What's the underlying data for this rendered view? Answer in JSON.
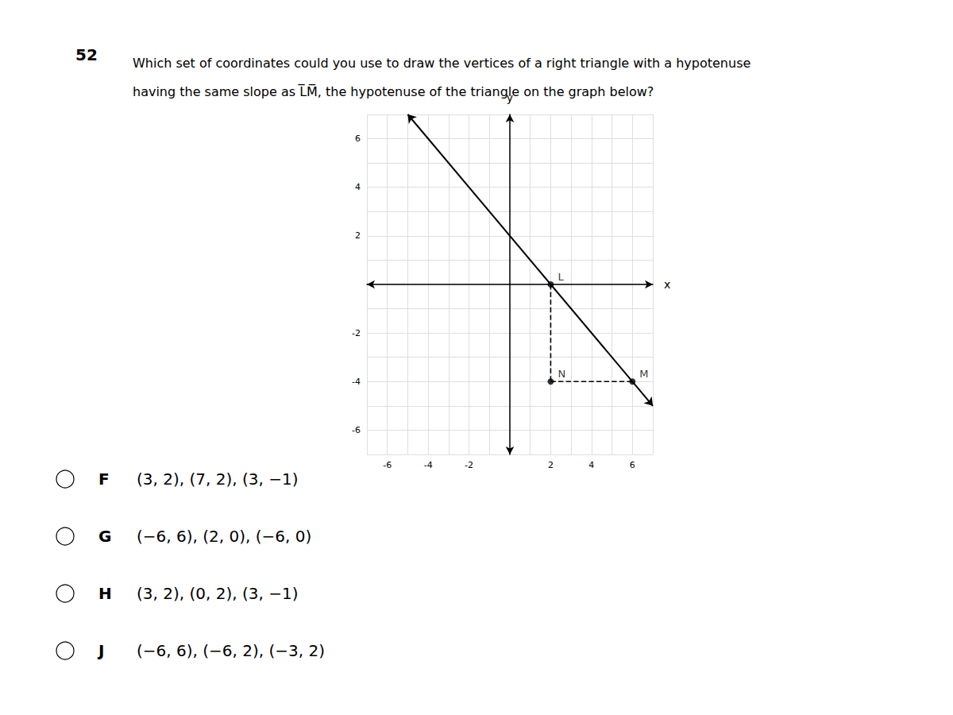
{
  "chart_data": {
    "type": "scatter",
    "title": "52",
    "subtitle": [
      "Which set of coordinates could you use to draw the vertices of a right triangle with a hypotenuse",
      "having the same slope as L̅M̅, the hypotenuse of the triangle on the graph below?"
    ],
    "xlabel": "x",
    "ylabel": "y",
    "xlim": [
      -7,
      7
    ],
    "ylim": [
      -7,
      7
    ],
    "xticks": [
      -6,
      -4,
      -2,
      2,
      4,
      6
    ],
    "yticks": [
      -6,
      -4,
      -2,
      2,
      4,
      6
    ],
    "grid": true,
    "series": [
      {
        "type": "line",
        "x": [
          -5,
          7
        ],
        "values": [
          7,
          -5
        ],
        "color": "#000000",
        "line_style": "solid",
        "marker": "arrow"
      },
      {
        "type": "line",
        "x": [
          2,
          2
        ],
        "values": [
          0,
          -4
        ],
        "color": "#000000",
        "line_style": "dashed"
      },
      {
        "type": "line",
        "x": [
          2,
          6
        ],
        "values": [
          -4,
          -4
        ],
        "color": "#000000",
        "line_style": "dashed"
      },
      {
        "type": "scatter",
        "x": [
          2,
          2,
          6
        ],
        "values": [
          0,
          -4,
          -4
        ],
        "color": "#000000",
        "marker": "circle"
      }
    ],
    "annotations": [
      {
        "text": "L",
        "x": 2,
        "y": 0
      },
      {
        "text": "N",
        "x": 2,
        "y": -4
      },
      {
        "text": "M",
        "x": 6,
        "y": -4
      }
    ],
    "choices": [
      {
        "label": "F",
        "text": "(3, 2), (7, 2), (3, −1)"
      },
      {
        "label": "G",
        "text": "(−6, 6), (2, 0), (−6, 0)"
      },
      {
        "label": "H",
        "text": "(3, 2), (0, 2), (3, −1)"
      },
      {
        "label": "J",
        "text": "(−6, 6), (−6, 2), (−3, 2)"
      }
    ]
  }
}
